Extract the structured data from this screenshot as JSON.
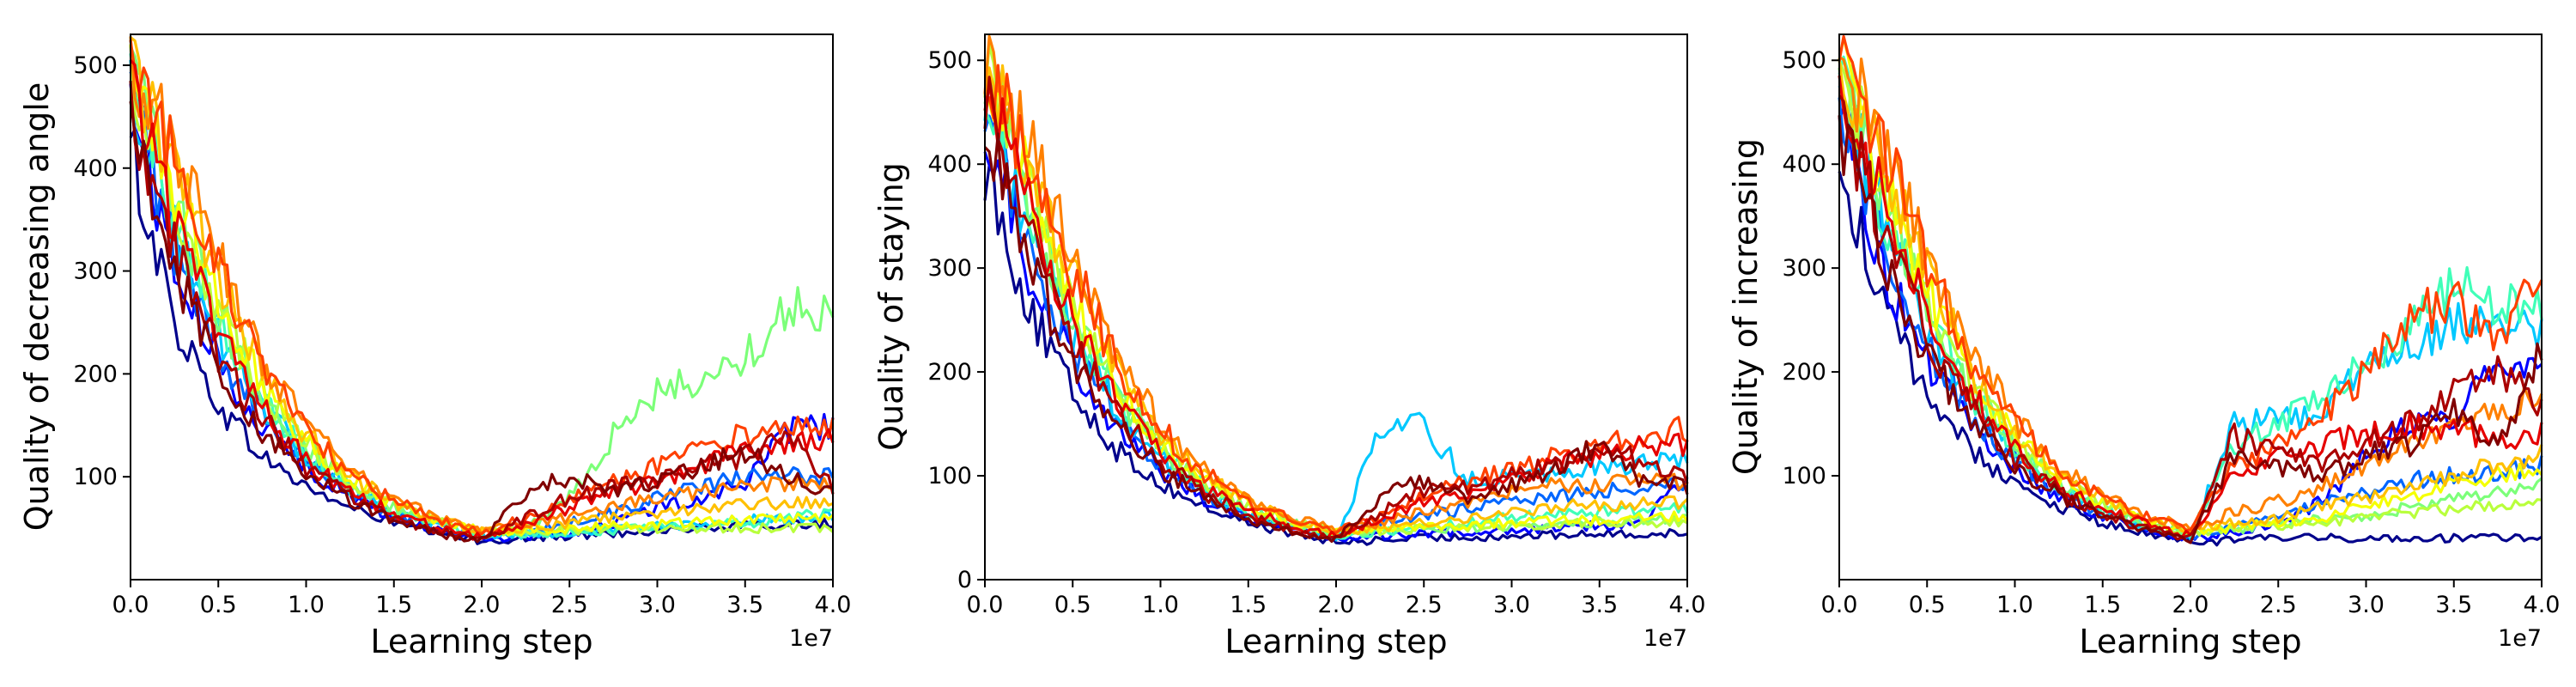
{
  "figure": {
    "panels": [
      {
        "xlabel": "Learning step",
        "ylabel": "Quality of decreasing angle",
        "xexponent": "1e7"
      },
      {
        "xlabel": "Learning step",
        "ylabel": "Quality of staying",
        "xexponent": "1e7"
      },
      {
        "xlabel": "Learning step",
        "ylabel": "Quality of increasing",
        "xexponent": "1e7"
      }
    ]
  },
  "chart_data": [
    {
      "type": "line",
      "title": "",
      "xlabel": "Learning step",
      "ylabel": "Quality of decreasing angle",
      "x_exponent_label": "1e7",
      "xlim": [
        0,
        4.0
      ],
      "ylim": [
        0,
        530
      ],
      "xticks": [
        0.0,
        0.5,
        1.0,
        1.5,
        2.0,
        2.5,
        3.0,
        3.5,
        4.0
      ],
      "xtick_labels": [
        "0.0",
        "0.5",
        "1.0",
        "1.5",
        "2.0",
        "2.5",
        "3.0",
        "3.5",
        "4.0"
      ],
      "yticks": [
        100,
        200,
        300,
        400,
        500
      ],
      "ytick_labels": [
        "100",
        "200",
        "300",
        "400",
        "500"
      ],
      "grid": false,
      "legend": "none",
      "series_colors": [
        "#00008b",
        "#0000ff",
        "#0066ff",
        "#00c8ff",
        "#40ffb8",
        "#7cff79",
        "#b9ff3c",
        "#f5ff00",
        "#ffc000",
        "#ff8000",
        "#ff4000",
        "#e60000",
        "#aa0000",
        "#800000"
      ],
      "series_x": [
        0.0,
        0.25,
        0.5,
        0.75,
        1.0,
        1.25,
        1.5,
        1.75,
        2.0,
        2.25,
        2.5,
        2.75,
        3.0,
        3.25,
        3.5,
        3.75,
        4.0
      ],
      "series": [
        {
          "color": "#00008b",
          "values": [
            420,
            250,
            170,
            120,
            90,
            70,
            55,
            45,
            38,
            40,
            42,
            45,
            48,
            50,
            52,
            53,
            55
          ]
        },
        {
          "color": "#0000ff",
          "values": [
            470,
            300,
            210,
            150,
            110,
            80,
            60,
            48,
            40,
            42,
            45,
            55,
            70,
            80,
            95,
            145,
            150
          ]
        },
        {
          "color": "#0066ff",
          "values": [
            480,
            320,
            220,
            160,
            115,
            85,
            65,
            52,
            42,
            45,
            55,
            65,
            80,
            90,
            100,
            100,
            100
          ]
        },
        {
          "color": "#00c8ff",
          "values": [
            490,
            340,
            240,
            170,
            120,
            88,
            66,
            52,
            43,
            44,
            46,
            50,
            52,
            55,
            58,
            60,
            62
          ]
        },
        {
          "color": "#40ffb8",
          "values": [
            495,
            350,
            250,
            175,
            125,
            90,
            68,
            54,
            44,
            45,
            46,
            48,
            50,
            52,
            55,
            60,
            65
          ]
        },
        {
          "color": "#7cff79",
          "values": [
            500,
            360,
            260,
            180,
            130,
            95,
            70,
            55,
            45,
            50,
            80,
            140,
            180,
            195,
            215,
            268,
            258
          ]
        },
        {
          "color": "#b9ff3c",
          "values": [
            500,
            370,
            265,
            185,
            132,
            96,
            72,
            56,
            46,
            47,
            48,
            49,
            50,
            50,
            50,
            50,
            50
          ]
        },
        {
          "color": "#f5ff00",
          "values": [
            500,
            380,
            270,
            190,
            135,
            98,
            74,
            58,
            47,
            48,
            50,
            52,
            54,
            56,
            58,
            60,
            60
          ]
        },
        {
          "color": "#ffc000",
          "values": [
            505,
            400,
            290,
            200,
            140,
            100,
            75,
            58,
            47,
            50,
            55,
            60,
            65,
            70,
            72,
            75,
            75
          ]
        },
        {
          "color": "#ff8000",
          "values": [
            505,
            420,
            310,
            215,
            150,
            105,
            78,
            60,
            48,
            55,
            60,
            70,
            80,
            85,
            90,
            92,
            95
          ]
        },
        {
          "color": "#ff4000",
          "values": [
            500,
            410,
            300,
            205,
            145,
            102,
            76,
            58,
            46,
            60,
            80,
            95,
            110,
            130,
            140,
            148,
            150
          ]
        },
        {
          "color": "#e60000",
          "values": [
            480,
            350,
            240,
            165,
            115,
            85,
            64,
            50,
            40,
            55,
            70,
            85,
            95,
            110,
            125,
            130,
            135
          ]
        },
        {
          "color": "#aa0000",
          "values": [
            460,
            320,
            220,
            155,
            110,
            80,
            60,
            47,
            39,
            60,
            80,
            90,
            100,
            110,
            120,
            140,
            90
          ]
        },
        {
          "color": "#800000",
          "values": [
            440,
            300,
            200,
            145,
            105,
            78,
            58,
            45,
            38,
            85,
            100,
            85,
            95,
            110,
            125,
            100,
            85
          ]
        }
      ]
    },
    {
      "type": "line",
      "title": "",
      "xlabel": "Learning step",
      "ylabel": "Quality of staying",
      "x_exponent_label": "1e7",
      "xlim": [
        0,
        4.0
      ],
      "ylim": [
        0,
        525
      ],
      "xticks": [
        0.0,
        0.5,
        1.0,
        1.5,
        2.0,
        2.5,
        3.0,
        3.5,
        4.0
      ],
      "xtick_labels": [
        "0.0",
        "0.5",
        "1.0",
        "1.5",
        "2.0",
        "2.5",
        "3.0",
        "3.5",
        "4.0"
      ],
      "yticks": [
        0,
        100,
        200,
        300,
        400,
        500
      ],
      "ytick_labels": [
        "0",
        "100",
        "200",
        "300",
        "400",
        "500"
      ],
      "grid": false,
      "legend": "none",
      "series_colors": [
        "#00008b",
        "#0000ff",
        "#0066ff",
        "#00c8ff",
        "#40ffb8",
        "#7cff79",
        "#b9ff3c",
        "#f5ff00",
        "#ffc000",
        "#ff8000",
        "#ff4000",
        "#e60000",
        "#aa0000",
        "#800000"
      ],
      "series_x": [
        0.0,
        0.25,
        0.5,
        0.75,
        1.0,
        1.25,
        1.5,
        1.75,
        2.0,
        2.25,
        2.5,
        2.75,
        3.0,
        3.25,
        3.5,
        3.75,
        4.0
      ],
      "series": [
        {
          "color": "#00008b",
          "values": [
            400,
            260,
            180,
            125,
            92,
            70,
            55,
            44,
            36,
            38,
            40,
            41,
            42,
            43,
            44,
            44,
            45
          ]
        },
        {
          "color": "#0000ff",
          "values": [
            450,
            300,
            210,
            145,
            105,
            78,
            60,
            48,
            40,
            42,
            44,
            46,
            48,
            50,
            52,
            55,
            100
          ]
        },
        {
          "color": "#0066ff",
          "values": [
            470,
            320,
            225,
            155,
            112,
            82,
            62,
            50,
            41,
            55,
            60,
            70,
            75,
            80,
            85,
            90,
            95
          ]
        },
        {
          "color": "#00c8ff",
          "values": [
            480,
            340,
            240,
            165,
            118,
            86,
            65,
            52,
            42,
            140,
            150,
            95,
            100,
            105,
            110,
            112,
            115
          ]
        },
        {
          "color": "#40ffb8",
          "values": [
            490,
            350,
            250,
            172,
            122,
            88,
            66,
            53,
            43,
            46,
            50,
            55,
            60,
            62,
            65,
            68,
            70
          ]
        },
        {
          "color": "#7cff79",
          "values": [
            495,
            360,
            258,
            178,
            126,
            90,
            68,
            54,
            44,
            46,
            48,
            50,
            52,
            54,
            56,
            58,
            60
          ]
        },
        {
          "color": "#b9ff3c",
          "values": [
            500,
            370,
            265,
            183,
            130,
            93,
            70,
            55,
            45,
            47,
            49,
            50,
            52,
            53,
            54,
            55,
            56
          ]
        },
        {
          "color": "#f5ff00",
          "values": [
            500,
            380,
            272,
            188,
            133,
            95,
            72,
            56,
            46,
            48,
            50,
            52,
            54,
            56,
            58,
            60,
            62
          ]
        },
        {
          "color": "#ffc000",
          "values": [
            500,
            400,
            290,
            200,
            140,
            100,
            75,
            58,
            47,
            50,
            55,
            60,
            65,
            70,
            72,
            74,
            75
          ]
        },
        {
          "color": "#ff8000",
          "values": [
            500,
            420,
            310,
            215,
            150,
            105,
            78,
            60,
            48,
            55,
            65,
            75,
            85,
            90,
            92,
            95,
            95
          ]
        },
        {
          "color": "#ff4000",
          "values": [
            495,
            410,
            300,
            208,
            146,
            102,
            76,
            58,
            46,
            60,
            80,
            95,
            105,
            120,
            130,
            140,
            145
          ]
        },
        {
          "color": "#e60000",
          "values": [
            480,
            360,
            250,
            175,
            122,
            88,
            66,
            52,
            41,
            60,
            75,
            85,
            95,
            110,
            120,
            128,
            130
          ]
        },
        {
          "color": "#aa0000",
          "values": [
            460,
            330,
            230,
            160,
            114,
            83,
            62,
            48,
            39,
            65,
            85,
            90,
            100,
            110,
            125,
            115,
            95
          ]
        },
        {
          "color": "#800000",
          "values": [
            440,
            305,
            210,
            148,
            107,
            79,
            59,
            46,
            38,
            80,
            95,
            80,
            90,
            105,
            130,
            95,
            90
          ]
        }
      ]
    },
    {
      "type": "line",
      "title": "",
      "xlabel": "Learning step",
      "ylabel": "Quality of increasing",
      "x_exponent_label": "1e7",
      "xlim": [
        0,
        4.0
      ],
      "ylim": [
        0,
        525
      ],
      "xticks": [
        0.0,
        0.5,
        1.0,
        1.5,
        2.0,
        2.5,
        3.0,
        3.5,
        4.0
      ],
      "xtick_labels": [
        "0.0",
        "0.5",
        "1.0",
        "1.5",
        "2.0",
        "2.5",
        "3.0",
        "3.5",
        "4.0"
      ],
      "yticks": [
        100,
        200,
        300,
        400,
        500
      ],
      "ytick_labels": [
        "100",
        "200",
        "300",
        "400",
        "500"
      ],
      "grid": false,
      "legend": "none",
      "series_colors": [
        "#00008b",
        "#0000ff",
        "#0066ff",
        "#00c8ff",
        "#40ffb8",
        "#7cff79",
        "#b9ff3c",
        "#f5ff00",
        "#ffc000",
        "#ff8000",
        "#ff4000",
        "#e60000",
        "#aa0000",
        "#800000"
      ],
      "series_x": [
        0.0,
        0.25,
        0.5,
        0.75,
        1.0,
        1.25,
        1.5,
        1.75,
        2.0,
        2.25,
        2.5,
        2.75,
        3.0,
        3.25,
        3.5,
        3.75,
        4.0
      ],
      "series": [
        {
          "color": "#00008b",
          "values": [
            400,
            260,
            180,
            125,
            92,
            70,
            55,
            44,
            36,
            38,
            40,
            40,
            40,
            40,
            40,
            40,
            40
          ]
        },
        {
          "color": "#0000ff",
          "values": [
            450,
            300,
            210,
            148,
            106,
            78,
            60,
            48,
            40,
            45,
            55,
            75,
            120,
            150,
            160,
            210,
            215
          ]
        },
        {
          "color": "#0066ff",
          "values": [
            470,
            320,
            225,
            158,
            113,
            83,
            63,
            50,
            41,
            50,
            60,
            75,
            85,
            95,
            100,
            105,
            110
          ]
        },
        {
          "color": "#00c8ff",
          "values": [
            480,
            345,
            245,
            170,
            120,
            88,
            66,
            52,
            42,
            150,
            155,
            160,
            210,
            220,
            245,
            250,
            245
          ]
        },
        {
          "color": "#40ffb8",
          "values": [
            490,
            355,
            255,
            178,
            126,
            91,
            68,
            54,
            43,
            130,
            150,
            180,
            210,
            240,
            285,
            265,
            260
          ]
        },
        {
          "color": "#7cff79",
          "values": [
            495,
            365,
            262,
            183,
            130,
            94,
            70,
            55,
            44,
            48,
            52,
            58,
            62,
            70,
            78,
            85,
            90
          ]
        },
        {
          "color": "#b9ff3c",
          "values": [
            500,
            375,
            270,
            188,
            134,
            96,
            72,
            56,
            45,
            48,
            52,
            56,
            60,
            64,
            68,
            72,
            75
          ]
        },
        {
          "color": "#f5ff00",
          "values": [
            500,
            385,
            278,
            194,
            138,
            99,
            74,
            58,
            46,
            50,
            55,
            60,
            70,
            80,
            95,
            100,
            105
          ]
        },
        {
          "color": "#ffc000",
          "values": [
            500,
            405,
            295,
            205,
            145,
            103,
            77,
            60,
            48,
            55,
            60,
            70,
            80,
            90,
            100,
            110,
            120
          ]
        },
        {
          "color": "#ff8000",
          "values": [
            500,
            425,
            315,
            220,
            155,
            108,
            80,
            62,
            50,
            65,
            75,
            90,
            110,
            130,
            150,
            165,
            175
          ]
        },
        {
          "color": "#ff4000",
          "values": [
            495,
            415,
            305,
            212,
            150,
            105,
            78,
            60,
            48,
            110,
            130,
            160,
            200,
            250,
            270,
            230,
            300
          ]
        },
        {
          "color": "#e60000",
          "values": [
            480,
            365,
            255,
            178,
            125,
            90,
            67,
            53,
            42,
            100,
            120,
            130,
            140,
            150,
            145,
            135,
            140
          ]
        },
        {
          "color": "#aa0000",
          "values": [
            460,
            335,
            235,
            164,
            117,
            85,
            63,
            49,
            40,
            140,
            120,
            110,
            130,
            150,
            180,
            200,
            170
          ]
        },
        {
          "color": "#800000",
          "values": [
            440,
            310,
            215,
            152,
            110,
            81,
            60,
            47,
            39,
            120,
            110,
            100,
            120,
            130,
            160,
            130,
            220
          ]
        }
      ]
    }
  ]
}
